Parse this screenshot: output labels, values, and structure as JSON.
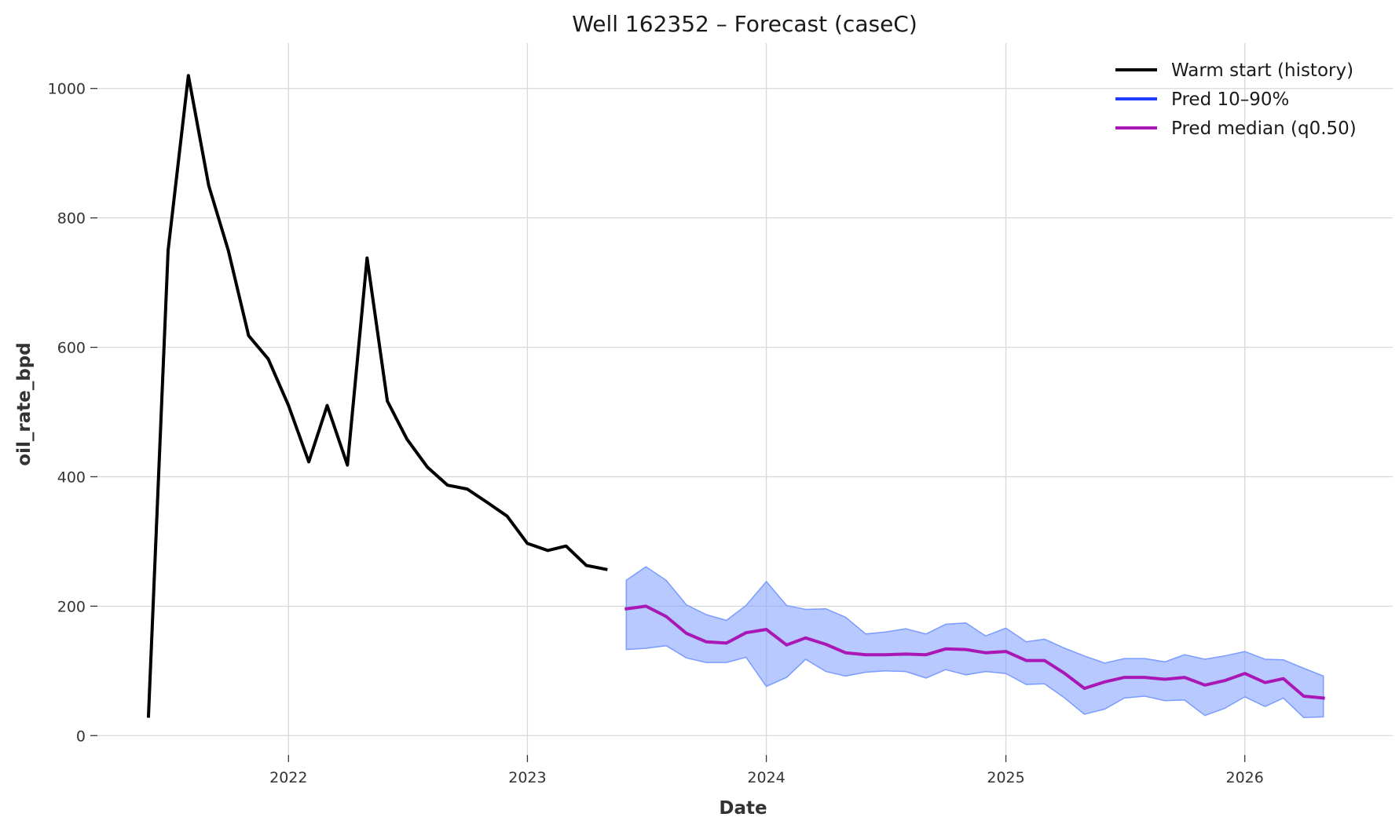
{
  "chart_data": {
    "type": "line",
    "title": "Well 162352 – Forecast (caseC)",
    "xlabel": "Date",
    "ylabel": "oil_rate_bpd",
    "x_ticks": [
      "2022",
      "2023",
      "2024",
      "2025",
      "2026"
    ],
    "y_ticks": [
      0,
      200,
      400,
      600,
      800,
      1000
    ],
    "xlim": [
      "2021-03-15",
      "2026-08-15"
    ],
    "ylim": [
      -30,
      1070
    ],
    "grid": true,
    "legend": {
      "placement": "top-right",
      "entries": [
        "Warm start (history)",
        "Pred 10–90%",
        "Pred median (q0.50)"
      ]
    },
    "colors": {
      "history": "#000000",
      "band_line": "#1f3cff",
      "band_fill": "#7b9cff",
      "median": "#a918b4"
    },
    "series": [
      {
        "name": "Warm start (history)",
        "x": [
          "2021-06-01",
          "2021-07-01",
          "2021-08-01",
          "2021-09-01",
          "2021-10-01",
          "2021-11-01",
          "2021-12-01",
          "2022-01-01",
          "2022-02-01",
          "2022-03-01",
          "2022-04-01",
          "2022-05-01",
          "2022-06-01",
          "2022-07-01",
          "2022-08-01",
          "2022-09-01",
          "2022-10-01",
          "2022-11-01",
          "2022-12-01",
          "2023-01-01",
          "2023-02-01",
          "2023-03-01",
          "2023-04-01",
          "2023-05-01"
        ],
        "y": [
          30,
          750,
          1020,
          850,
          750,
          618,
          582,
          510,
          423,
          510,
          418,
          738,
          517,
          458,
          415,
          387,
          381,
          360,
          339,
          297,
          286,
          293,
          263,
          257
        ]
      },
      {
        "name": "Pred 10–90%",
        "x": [
          "2023-06-01",
          "2023-07-01",
          "2023-08-01",
          "2023-09-01",
          "2023-10-01",
          "2023-11-01",
          "2023-12-01",
          "2024-01-01",
          "2024-02-01",
          "2024-03-01",
          "2024-04-01",
          "2024-05-01",
          "2024-06-01",
          "2024-07-01",
          "2024-08-01",
          "2024-09-01",
          "2024-10-01",
          "2024-11-01",
          "2024-12-01",
          "2025-01-01",
          "2025-02-01",
          "2025-03-01",
          "2025-04-01",
          "2025-05-01",
          "2025-06-01",
          "2025-07-01",
          "2025-08-01",
          "2025-09-01",
          "2025-10-01",
          "2025-11-01",
          "2025-12-01",
          "2026-01-01",
          "2026-02-01",
          "2026-03-01",
          "2026-04-01",
          "2026-05-01"
        ],
        "lower": [
          133,
          135,
          139,
          120,
          113,
          113,
          121,
          76,
          90,
          118,
          99,
          92,
          98,
          100,
          99,
          89,
          102,
          94,
          99,
          96,
          79,
          80,
          58,
          33,
          41,
          58,
          61,
          54,
          55,
          31,
          42,
          60,
          45,
          58,
          28,
          29
        ],
        "upper": [
          240,
          261,
          240,
          202,
          187,
          178,
          201,
          238,
          201,
          195,
          196,
          183,
          157,
          160,
          165,
          157,
          172,
          174,
          154,
          166,
          145,
          149,
          135,
          123,
          112,
          119,
          119,
          114,
          125,
          118,
          123,
          130,
          118,
          117,
          104,
          92
        ]
      },
      {
        "name": "Pred median (q0.50)",
        "x": [
          "2023-06-01",
          "2023-07-01",
          "2023-08-01",
          "2023-09-01",
          "2023-10-01",
          "2023-11-01",
          "2023-12-01",
          "2024-01-01",
          "2024-02-01",
          "2024-03-01",
          "2024-04-01",
          "2024-05-01",
          "2024-06-01",
          "2024-07-01",
          "2024-08-01",
          "2024-09-01",
          "2024-10-01",
          "2024-11-01",
          "2024-12-01",
          "2025-01-01",
          "2025-02-01",
          "2025-03-01",
          "2025-04-01",
          "2025-05-01",
          "2025-06-01",
          "2025-07-01",
          "2025-08-01",
          "2025-09-01",
          "2025-10-01",
          "2025-11-01",
          "2025-12-01",
          "2026-01-01",
          "2026-02-01",
          "2026-03-01",
          "2026-04-01",
          "2026-05-01"
        ],
        "y": [
          196,
          200,
          184,
          158,
          145,
          143,
          159,
          164,
          140,
          151,
          141,
          128,
          125,
          125,
          126,
          125,
          134,
          133,
          128,
          130,
          116,
          116,
          96,
          73,
          83,
          90,
          90,
          87,
          90,
          78,
          85,
          96,
          82,
          88,
          61,
          58
        ]
      }
    ]
  }
}
